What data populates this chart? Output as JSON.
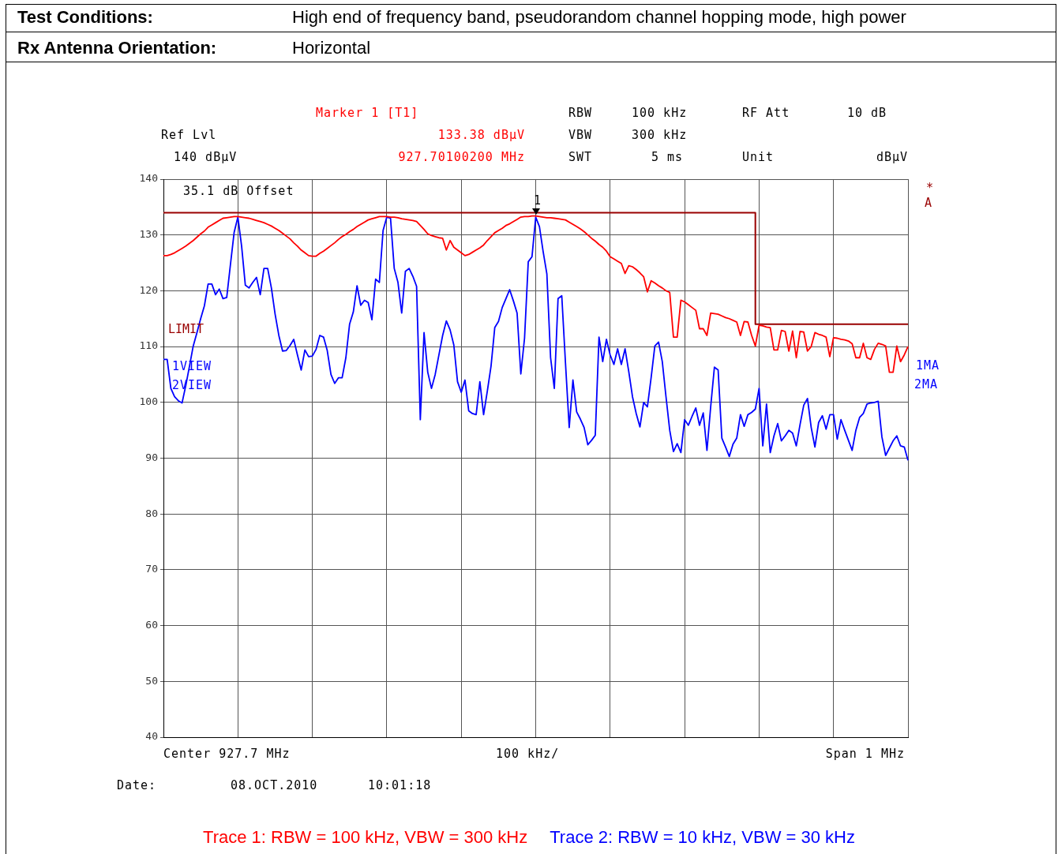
{
  "chart_data": {
    "type": "line",
    "annotations": [
      "Test Conditions:",
      "High end of frequency band, pseudorandom channel hopping mode, high power",
      "Rx Antenna Orientation:",
      "Horizontal",
      "Marker 1 [T1]",
      "133.38 dBµV",
      "927.70100200 MHz",
      "Ref Lvl",
      "140 dBµV",
      "RBW",
      "100 kHz",
      "RF Att",
      "10 dB",
      "VBW",
      "300 kHz",
      "SWT",
      "5 ms",
      "Unit",
      "dBµV",
      "35.1 dB Offset",
      "1VIEW",
      "2VIEW",
      "*",
      "A",
      "1MA",
      "2MA",
      "Center 927.7 MHz",
      "100 kHz/",
      "Span 1 MHz",
      "Date:",
      "08.OCT.2010",
      "10:01:18",
      "1"
    ],
    "categories": [
      null,
      null,
      null,
      null,
      null,
      null,
      null,
      null,
      null,
      null,
      null,
      null,
      null,
      null,
      null,
      null,
      null,
      null,
      null,
      null,
      null,
      null,
      null,
      null,
      null,
      null,
      null,
      null,
      null,
      null,
      null,
      null,
      null,
      null,
      null,
      null,
      null,
      null,
      null,
      null,
      null,
      null,
      null,
      null,
      null,
      null,
      null,
      null,
      null,
      null,
      null,
      null,
      null,
      null,
      null,
      null,
      null,
      null,
      null,
      null,
      null,
      null,
      null,
      null,
      null,
      null,
      null,
      null,
      null,
      null,
      null,
      null,
      null,
      null,
      null,
      null,
      null,
      null,
      null,
      null,
      null,
      null,
      null,
      null,
      null,
      null,
      null,
      null,
      null,
      null,
      null,
      null,
      null,
      null,
      null,
      null,
      null,
      null,
      null,
      null,
      null,
      null,
      null,
      null,
      null,
      null,
      null,
      null,
      null,
      null,
      null,
      null,
      null,
      null,
      null,
      null,
      null,
      null,
      null,
      null,
      null,
      null,
      null,
      null,
      null,
      null,
      null,
      null,
      null,
      null,
      null,
      null,
      null,
      null,
      null,
      null,
      null,
      null,
      null,
      null,
      null,
      null,
      null,
      null,
      null,
      null,
      null,
      null,
      null,
      null,
      null,
      null,
      null,
      null,
      null,
      null,
      null,
      null,
      null,
      null,
      null,
      null,
      null,
      null,
      null,
      null,
      null,
      null,
      null,
      null,
      null,
      null,
      null,
      null,
      null,
      null,
      null,
      null,
      null,
      null,
      null,
      null,
      null,
      null,
      null,
      null,
      null,
      null,
      null,
      null,
      null,
      null,
      null,
      null,
      null,
      null,
      null,
      null,
      null,
      null,
      null
    ],
    "series": [
      {
        "name": "Trace 1: RBW = 100 kHz, VBW = 300 kHz",
        "color": "#ff0000",
        "values": [
          126.3,
          126.3,
          126.5,
          126.8,
          127.2,
          127.6,
          128.0,
          128.5,
          129.0,
          129.6,
          130.2,
          130.7,
          131.4,
          131.8,
          132.2,
          132.6,
          133.0,
          133.1,
          133.2,
          133.3,
          133.3,
          133.2,
          133.1,
          133.0,
          132.8,
          132.6,
          132.4,
          132.2,
          131.9,
          131.6,
          131.2,
          130.8,
          130.3,
          129.8,
          129.3,
          128.6,
          128.0,
          127.3,
          126.8,
          126.3,
          126.2,
          126.2,
          126.7,
          127.1,
          127.6,
          128.1,
          128.6,
          129.2,
          129.7,
          130.1,
          130.6,
          131.0,
          131.5,
          131.9,
          132.3,
          132.7,
          132.9,
          133.1,
          133.3,
          133.3,
          133.3,
          133.2,
          133.2,
          133.1,
          132.9,
          132.8,
          132.7,
          132.6,
          132.4,
          131.7,
          131.0,
          130.2,
          129.9,
          129.7,
          129.5,
          129.4,
          127.3,
          129.0,
          127.8,
          127.3,
          126.8,
          126.3,
          126.5,
          126.9,
          127.3,
          127.7,
          128.2,
          129.0,
          129.7,
          130.4,
          130.8,
          131.2,
          131.7,
          132.0,
          132.4,
          132.8,
          133.2,
          133.3,
          133.3,
          133.4,
          133.4,
          133.3,
          133.2,
          133.1,
          133.1,
          133.0,
          132.9,
          132.8,
          132.7,
          132.3,
          131.9,
          131.5,
          131.1,
          130.6,
          130.0,
          129.4,
          128.9,
          128.3,
          127.8,
          127.1,
          126.1,
          125.7,
          125.3,
          124.9,
          123.1,
          124.5,
          124.3,
          123.8,
          123.2,
          122.5,
          119.8,
          121.8,
          121.4,
          120.9,
          120.5,
          120.0,
          119.7,
          111.7,
          111.7,
          118.3,
          118.0,
          117.5,
          117.0,
          116.5,
          113.2,
          113.2,
          112.0,
          116.0,
          115.9,
          115.8,
          115.5,
          115.2,
          115.0,
          114.7,
          114.4,
          112.0,
          114.5,
          114.4,
          112.0,
          110.1,
          113.8,
          113.7,
          113.5,
          113.4,
          109.4,
          109.4,
          112.9,
          112.7,
          109.2,
          112.8,
          108.0,
          112.7,
          112.6,
          109.2,
          110.0,
          112.5,
          112.2,
          112.0,
          111.7,
          108.2,
          111.6,
          111.5,
          111.3,
          111.2,
          111.0,
          110.5,
          108.0,
          108.0,
          110.6,
          108.0,
          107.7,
          109.5,
          110.6,
          110.4,
          110.1,
          105.4,
          105.4,
          110.1,
          107.3,
          108.5,
          110.0
        ]
      },
      {
        "name": "Trace 2: RBW = 10 kHz, VBW = 30 kHz",
        "color": "#0000ff",
        "values": [
          107.7,
          107.7,
          102.5,
          101.0,
          100.3,
          99.9,
          103.0,
          106.5,
          110.1,
          112.5,
          115.0,
          117.3,
          121.2,
          121.2,
          119.3,
          120.3,
          118.6,
          118.8,
          124.7,
          130.5,
          133.2,
          128.0,
          121.0,
          120.5,
          121.5,
          122.4,
          119.3,
          124.0,
          124.0,
          120.5,
          115.8,
          112.0,
          109.2,
          109.3,
          110.2,
          111.3,
          108.5,
          105.8,
          109.4,
          108.2,
          108.3,
          109.5,
          112.0,
          111.7,
          109.3,
          105.0,
          103.4,
          104.4,
          104.4,
          108.0,
          114.0,
          116.2,
          120.9,
          117.4,
          118.3,
          117.9,
          114.8,
          122.1,
          121.5,
          130.8,
          133.2,
          133.0,
          124.0,
          121.5,
          116.0,
          123.5,
          124.0,
          122.6,
          120.8,
          96.9,
          112.5,
          105.4,
          102.5,
          105.0,
          108.5,
          112.0,
          114.6,
          113.0,
          110.3,
          103.7,
          101.8,
          104.0,
          98.5,
          98.0,
          97.8,
          103.7,
          97.8,
          102.0,
          106.5,
          113.4,
          114.5,
          117.0,
          118.6,
          120.2,
          118.2,
          116.0,
          105.1,
          111.5,
          125.2,
          126.1,
          133.2,
          131.5,
          127.0,
          123.0,
          108.0,
          102.5,
          118.6,
          119.1,
          107.0,
          95.5,
          104.0,
          98.3,
          97.0,
          95.5,
          92.4,
          93.2,
          94.1,
          111.7,
          107.3,
          111.3,
          108.5,
          106.8,
          109.6,
          106.8,
          109.6,
          105.5,
          101.0,
          98.0,
          95.6,
          100.0,
          99.2,
          104.4,
          110.1,
          110.8,
          107.3,
          101.0,
          95.0,
          91.2,
          92.6,
          91.0,
          96.9,
          95.9,
          97.5,
          99.0,
          95.9,
          98.1,
          91.4,
          99.2,
          106.3,
          105.8,
          93.6,
          92.0,
          90.3,
          92.5,
          93.6,
          97.8,
          95.7,
          97.8,
          98.2,
          98.8,
          102.5,
          92.2,
          99.7,
          91.0,
          94.0,
          96.2,
          93.1,
          94.0,
          95.0,
          94.5,
          92.2,
          96.0,
          99.5,
          100.7,
          95.5,
          92.0,
          96.4,
          97.6,
          95.2,
          97.8,
          97.8,
          93.4,
          96.9,
          95.0,
          93.2,
          91.4,
          95.0,
          97.3,
          98.0,
          99.7,
          99.9,
          100.0,
          100.2,
          93.8,
          90.5,
          91.8,
          93.1,
          94.0,
          92.2,
          92.0,
          89.6
        ]
      },
      {
        "name": "LIMIT",
        "color": "#990000",
        "type": "step",
        "values": [
          134,
          134,
          134,
          134,
          134,
          134,
          134,
          134,
          134,
          134,
          134,
          134,
          134,
          134,
          134,
          134,
          134,
          134,
          134,
          134,
          134,
          134,
          134,
          134,
          134,
          134,
          134,
          134,
          134,
          134,
          134,
          134,
          134,
          134,
          134,
          134,
          134,
          134,
          134,
          134,
          134,
          134,
          134,
          134,
          134,
          134,
          134,
          134,
          134,
          134,
          134,
          134,
          134,
          134,
          134,
          134,
          134,
          134,
          134,
          134,
          134,
          134,
          134,
          134,
          134,
          134,
          134,
          134,
          134,
          134,
          134,
          134,
          134,
          134,
          134,
          134,
          134,
          134,
          134,
          134,
          134,
          134,
          134,
          134,
          134,
          134,
          134,
          134,
          134,
          134,
          134,
          134,
          134,
          134,
          134,
          134,
          134,
          134,
          134,
          134,
          134,
          134,
          134,
          134,
          134,
          134,
          134,
          134,
          134,
          134,
          134,
          134,
          134,
          134,
          134,
          134,
          134,
          134,
          134,
          134,
          134,
          134,
          134,
          134,
          134,
          134,
          134,
          134,
          134,
          134,
          134,
          134,
          134,
          134,
          134,
          134,
          134,
          134,
          134,
          134,
          134,
          134,
          134,
          134,
          134,
          134,
          134,
          134,
          134,
          134,
          134,
          134,
          134,
          134,
          134,
          134,
          134,
          134,
          134,
          134,
          114,
          114,
          114,
          114,
          114,
          114,
          114,
          114,
          114,
          114,
          114,
          114,
          114,
          114,
          114,
          114,
          114,
          114,
          114,
          114,
          114,
          114,
          114,
          114,
          114,
          114,
          114,
          114,
          114,
          114,
          114,
          114,
          114,
          114,
          114,
          114,
          114,
          114,
          114,
          114,
          114
        ]
      }
    ],
    "ylim": [
      40,
      140
    ],
    "yticks": [
      40,
      50,
      60,
      70,
      80,
      90,
      100,
      110,
      120,
      130,
      140
    ],
    "tick_labels": "y",
    "grid": true,
    "marker": "none",
    "line_style": "solid"
  }
}
